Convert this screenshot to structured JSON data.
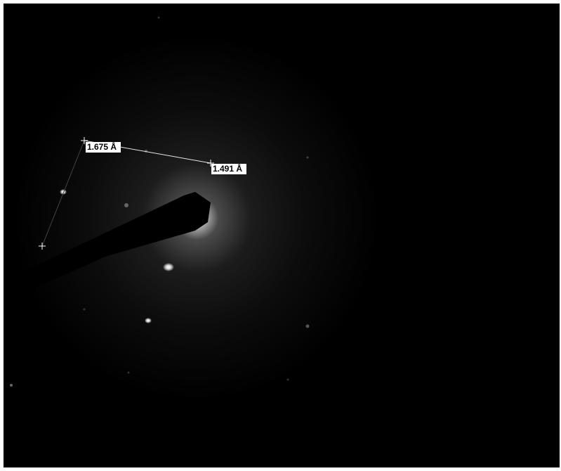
{
  "measurements": [
    {
      "label": "1.675 Å"
    },
    {
      "label": "1.491 Å"
    }
  ]
}
